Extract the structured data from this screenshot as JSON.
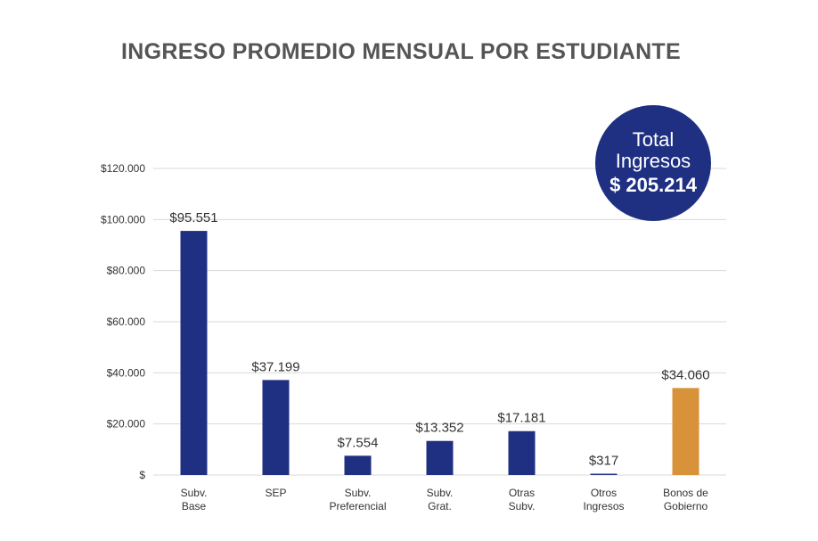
{
  "chart_data": {
    "type": "bar",
    "title": "INGRESO PROMEDIO MENSUAL POR ESTUDIANTE",
    "categories": [
      [
        "Subv.",
        "Base"
      ],
      [
        "SEP"
      ],
      [
        "Subv.",
        "Preferencial"
      ],
      [
        "Subv.",
        "Grat."
      ],
      [
        "Otras",
        "Subv."
      ],
      [
        "Otros",
        "Ingresos"
      ],
      [
        "Bonos de",
        "Gobierno"
      ]
    ],
    "values": [
      95551,
      37199,
      7554,
      13352,
      17181,
      317,
      34060
    ],
    "value_labels": [
      "$95.551",
      "$37.199",
      "$7.554",
      "$13.352",
      "$17.181",
      "$317",
      "$34.060"
    ],
    "bar_colors": [
      "#1f3082",
      "#1f3082",
      "#1f3082",
      "#1f3082",
      "#1f3082",
      "#1f3082",
      "#d8923a"
    ],
    "ylim": [
      0,
      120000
    ],
    "yticks": [
      0,
      20000,
      40000,
      60000,
      80000,
      100000,
      120000
    ],
    "ytick_labels": [
      "$",
      "$20.000",
      "$40.000",
      "$60.000",
      "$80.000",
      "$100.000",
      "$120.000"
    ],
    "xlabel": "",
    "ylabel": "",
    "grid": true
  },
  "total_badge": {
    "line1": "Total",
    "line2": "Ingresos",
    "amount": "$ 205.214",
    "color": "#1f3082"
  },
  "colors": {
    "primary": "#1f3082",
    "accent": "#d8923a",
    "title": "#555555"
  }
}
